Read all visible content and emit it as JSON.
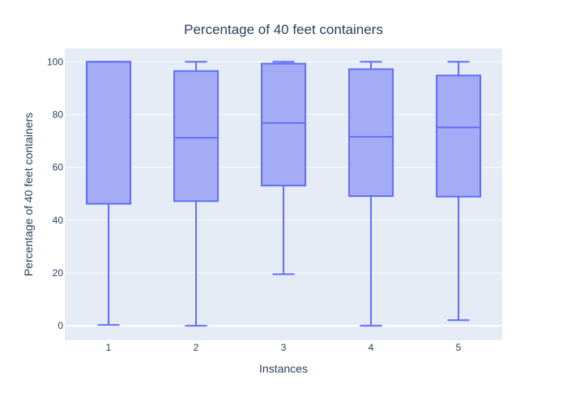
{
  "chart_data": {
    "type": "box",
    "title": "Percentage of 40 feet containers",
    "xlabel": "Instances",
    "ylabel": "Percentage of 40 feet containers",
    "ylim": [
      -5.5,
      105
    ],
    "yticks": [
      0,
      20,
      40,
      60,
      80,
      100
    ],
    "categories": [
      "1",
      "2",
      "3",
      "4",
      "5"
    ],
    "boxes": [
      {
        "category": "1",
        "min": 0.3,
        "q1": 46.2,
        "median": 100,
        "q3": 100,
        "max": 100
      },
      {
        "category": "2",
        "min": 0.0,
        "q1": 47.2,
        "median": 71.2,
        "q3": 96.5,
        "max": 100
      },
      {
        "category": "3",
        "min": 19.5,
        "q1": 53.1,
        "median": 76.8,
        "q3": 99.3,
        "max": 100
      },
      {
        "category": "4",
        "min": 0.0,
        "q1": 49.1,
        "median": 71.6,
        "q3": 97.2,
        "max": 100
      },
      {
        "category": "5",
        "min": 2.1,
        "q1": 48.9,
        "median": 75.1,
        "q3": 94.8,
        "max": 100
      }
    ],
    "grid": true,
    "colors": {
      "plot_bg": "#e5ecf6",
      "box_fill": "#a3acf4",
      "box_line": "#636efa",
      "text": "#2a3f5f"
    }
  }
}
